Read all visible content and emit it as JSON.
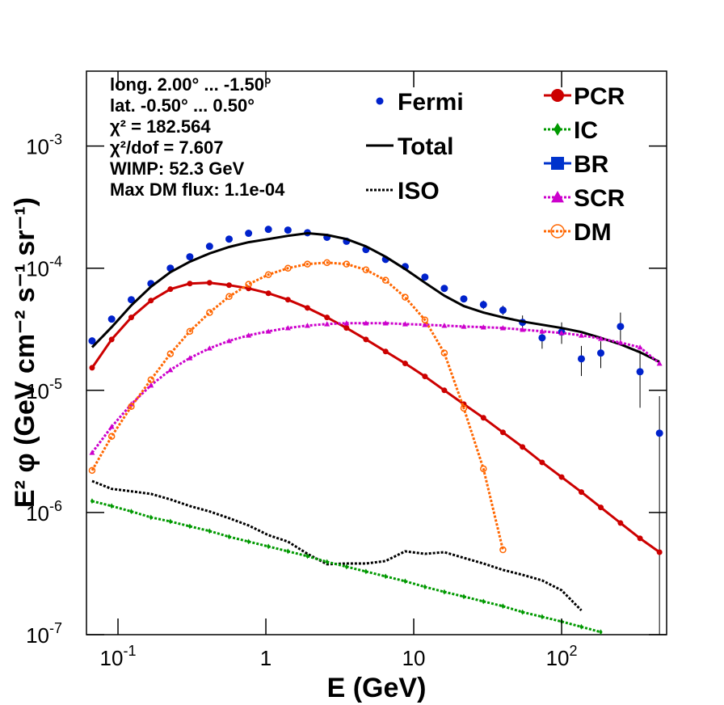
{
  "chart_data": {
    "type": "line",
    "xlog": true,
    "ylog": true,
    "xlabel": "E (GeV)",
    "ylabel": "E² φ (GeV cm⁻² s⁻¹ sr⁻¹)",
    "annotations": [
      "long. 2.00° ... -1.50°",
      "lat. -0.50° ... 0.50°",
      "χ² = 182.564",
      "χ²/dof = 7.607",
      "WIMP: 52.3 GeV",
      "Max DM flux: 1.1e-04"
    ],
    "xlim": [
      0.0612,
      513
    ],
    "ylim": [
      1e-07,
      0.0041
    ],
    "xticks": [
      {
        "value": 0.1,
        "label": "10",
        "exponent": "-1"
      },
      1,
      10,
      {
        "value": 100,
        "label": "10",
        "exponent": "2"
      }
    ],
    "yticks": [
      {
        "value": 1e-07,
        "label": "10",
        "exponent": "-7"
      },
      {
        "value": 1e-06,
        "label": "10",
        "exponent": "-6"
      },
      {
        "value": 1e-05,
        "label": "10",
        "exponent": "-5"
      },
      {
        "value": 0.0001,
        "label": "10",
        "exponent": "-4"
      },
      {
        "value": 0.001,
        "label": "10",
        "exponent": "-3"
      }
    ],
    "x": [
      0.0668,
      0.0906,
      0.123,
      0.167,
      0.226,
      0.306,
      0.416,
      0.564,
      0.764,
      1.04,
      1.41,
      1.91,
      2.59,
      3.51,
      4.75,
      6.45,
      8.75,
      11.9,
      16.1,
      21.8,
      29.6,
      40.1,
      54.4,
      73.8,
      100,
      136,
      184,
      250,
      339,
      459
    ],
    "series": [
      {
        "name": "Fermi",
        "color": "#0022cc",
        "marker": "circle",
        "line": "none",
        "legend": "left",
        "values": [
          2.54e-05,
          3.83e-05,
          5.52e-05,
          7.48e-05,
          0.0001,
          0.000124,
          0.000151,
          0.000173,
          0.000193,
          0.000208,
          0.000205,
          0.000195,
          0.000179,
          0.000166,
          0.000142,
          0.000118,
          0.000103,
          8.45e-05,
          6.83e-05,
          5.6e-05,
          5.03e-05,
          4.53e-05,
          3.6e-05,
          2.69e-05,
          3e-05,
          1.81e-05,
          2.02e-05,
          3.33e-05,
          1.42e-05,
          4.46e-06
        ],
        "errors": [
          1e-06,
          1.5e-06,
          2e-06,
          3e-06,
          4e-06,
          5e-06,
          6e-06,
          7e-06,
          8e-06,
          8e-06,
          8e-06,
          8e-06,
          7e-06,
          7e-06,
          6e-06,
          5e-06,
          4e-06,
          4e-06,
          3e-06,
          3e-06,
          4e-06,
          4e-06,
          5e-06,
          5e-06,
          6e-06,
          5e-06,
          5e-06,
          1e-05,
          7e-06,
          4.5e-06
        ]
      },
      {
        "name": "Total",
        "color": "#000000",
        "marker": "none",
        "line": "solid",
        "legend": "left",
        "values": [
          2.25e-05,
          3.29e-05,
          4.96e-05,
          7.04e-05,
          9.27e-05,
          0.000113,
          0.000132,
          0.000149,
          0.000163,
          0.000173,
          0.000184,
          0.000193,
          0.000187,
          0.000173,
          0.000151,
          0.000124,
          9.84e-05,
          7.6e-05,
          5.96e-05,
          4.89e-05,
          4.33e-05,
          3.95e-05,
          3.66e-05,
          3.44e-05,
          3.24e-05,
          3e-05,
          2.69e-05,
          2.38e-05,
          2.05e-05,
          1.71e-05
        ]
      },
      {
        "name": "ISO",
        "color": "#000000",
        "marker": "none",
        "line": "dotted",
        "legend": "left",
        "values": [
          1.81e-06,
          1.56e-06,
          1.49e-06,
          1.42e-06,
          1.28e-06,
          1.13e-06,
          1.02e-06,
          8.99e-07,
          7.84e-07,
          6.53e-07,
          5.78e-07,
          4.59e-07,
          3.77e-07,
          3.82e-07,
          3.82e-07,
          4.01e-07,
          4.81e-07,
          4.59e-07,
          4.73e-07,
          4.25e-07,
          3.82e-07,
          3.39e-07,
          3.09e-07,
          2.78e-07,
          2.31e-07,
          1.58e-07,
          null,
          null,
          null,
          null
        ]
      },
      {
        "name": "PCR",
        "color": "#cc0000",
        "marker": "circle",
        "line": "solid",
        "legend": "right",
        "values": [
          1.53e-05,
          2.61e-05,
          3.95e-05,
          5.43e-05,
          6.73e-05,
          7.48e-05,
          7.6e-05,
          7.26e-05,
          6.83e-05,
          6.23e-05,
          5.52e-05,
          4.73e-05,
          3.95e-05,
          3.24e-05,
          2.61e-05,
          2.08e-05,
          1.66e-05,
          1.3e-05,
          1e-05,
          7.71e-06,
          5.96e-06,
          4.53e-06,
          3.44e-06,
          2.57e-06,
          1.95e-06,
          1.47e-06,
          1.1e-06,
          8.2e-07,
          6.14e-07,
          4.73e-07
        ]
      },
      {
        "name": "IC",
        "color": "#009900",
        "marker": "diamond",
        "line": "dotted",
        "legend": "right",
        "values": [
          1.24e-06,
          1.13e-06,
          1.02e-06,
          9.12e-07,
          8.45e-07,
          7.71e-07,
          7.05e-07,
          6.33e-07,
          5.78e-07,
          5.27e-07,
          4.81e-07,
          4.39e-07,
          3.94e-07,
          3.6e-07,
          3.29e-07,
          3e-07,
          2.74e-07,
          2.46e-07,
          2.24e-07,
          2.05e-07,
          1.87e-07,
          1.71e-07,
          1.53e-07,
          1.4e-07,
          1.28e-07,
          1.16e-07,
          1.05e-07,
          null,
          null,
          null
        ]
      },
      {
        "name": "BR",
        "color": "#0033cc",
        "marker": "square",
        "line": "solid",
        "legend": "right",
        "values": [
          null,
          null,
          null,
          null,
          null,
          null,
          null,
          null,
          null,
          null,
          null,
          null,
          null,
          null,
          null,
          null,
          null,
          null,
          null,
          null,
          null,
          null,
          null,
          null,
          null,
          null,
          null,
          null,
          null,
          null
        ]
      },
      {
        "name": "SCR",
        "color": "#cc00cc",
        "marker": "triangle",
        "line": "dotted",
        "legend": "right",
        "values": [
          3.09e-06,
          5.04e-06,
          7.71e-06,
          1.1e-05,
          1.47e-05,
          1.84e-05,
          2.21e-05,
          2.54e-05,
          2.82e-05,
          3.04e-05,
          3.24e-05,
          3.39e-05,
          3.49e-05,
          3.55e-05,
          3.55e-05,
          3.55e-05,
          3.49e-05,
          3.44e-05,
          3.39e-05,
          3.33e-05,
          3.29e-05,
          3.24e-05,
          3.14e-05,
          3.04e-05,
          2.95e-05,
          2.82e-05,
          2.65e-05,
          2.46e-05,
          2.25e-05,
          1.66e-05
        ]
      },
      {
        "name": "DM",
        "color": "#ff6600",
        "marker": "open-circle",
        "line": "dotted",
        "legend": "right",
        "values": [
          2.21e-06,
          4.2e-06,
          7.38e-06,
          1.22e-05,
          1.99e-05,
          3.04e-05,
          4.33e-05,
          5.86e-05,
          7.38e-05,
          8.85e-05,
          0.0001,
          0.000108,
          0.000111,
          0.000108,
          9.7e-05,
          7.96e-05,
          5.78e-05,
          3.77e-05,
          2.02e-05,
          7.14e-06,
          2.28e-06,
          4.95e-07,
          null,
          null,
          null,
          null,
          null,
          null,
          null,
          null
        ]
      }
    ]
  }
}
